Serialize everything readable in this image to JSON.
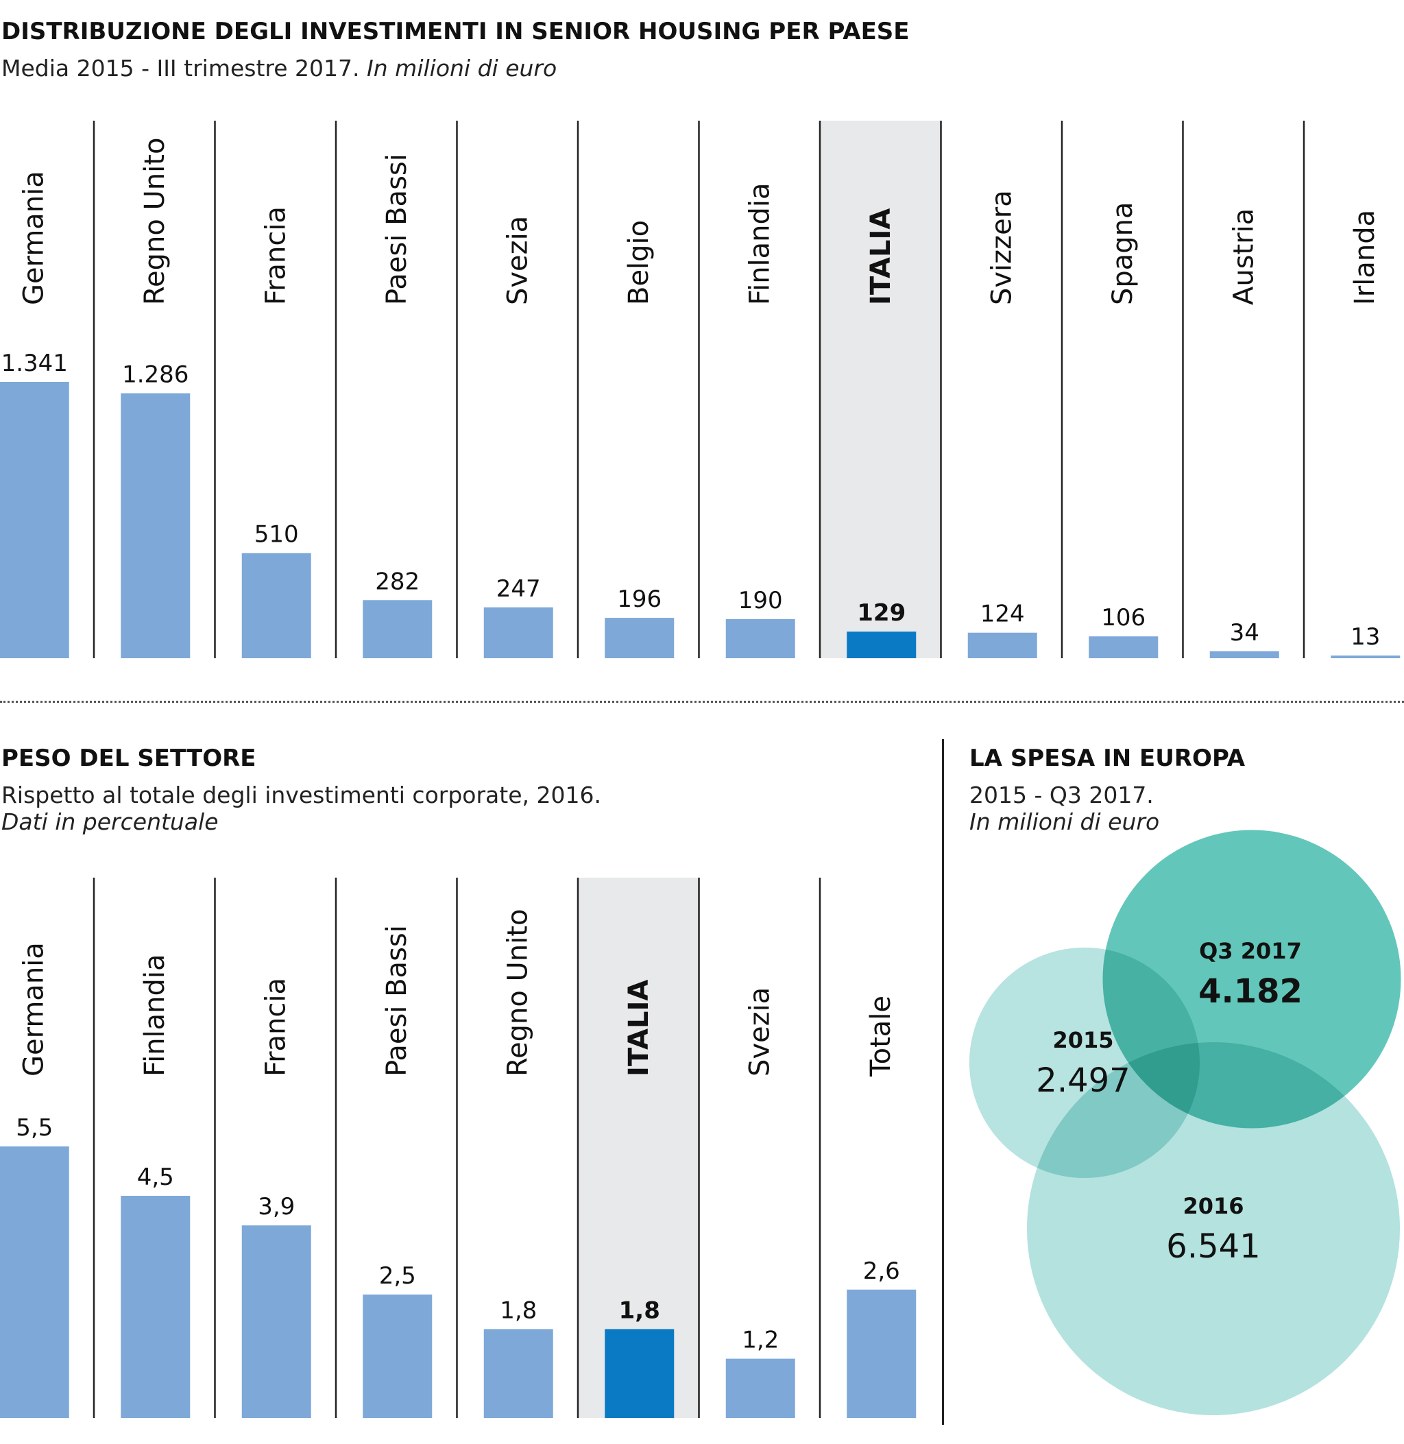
{
  "chart_data": [
    {
      "type": "bar",
      "title": "DISTRIBUZIONE DEGLI INVESTIMENTI IN SENIOR HOUSING PER PAESE",
      "subtitle": "Media 2015 - III trimestre 2017.",
      "subtitle_italic": "In milioni di euro",
      "categories": [
        "Germania",
        "Regno Unito",
        "Francia",
        "Paesi Bassi",
        "Svezia",
        "Belgio",
        "Finlandia",
        "ITALIA",
        "Svizzera",
        "Spagna",
        "Austria",
        "Irlanda"
      ],
      "values": [
        1341,
        1286,
        510,
        282,
        247,
        196,
        190,
        129,
        124,
        106,
        34,
        13
      ],
      "value_labels": [
        "1.341",
        "1.286",
        "510",
        "282",
        "247",
        "196",
        "190",
        "129",
        "124",
        "106",
        "34",
        "13"
      ],
      "highlight": "ITALIA",
      "ylim": [
        0,
        1341
      ]
    },
    {
      "type": "bar",
      "title": "PESO DEL SETTORE",
      "subtitle": "Rispetto al totale degli investimenti corporate, 2016.",
      "subtitle_italic": "Dati in percentuale",
      "categories": [
        "Germania",
        "Finlandia",
        "Francia",
        "Paesi Bassi",
        "Regno Unito",
        "ITALIA",
        "Svezia",
        "Totale"
      ],
      "values": [
        5.5,
        4.5,
        3.9,
        2.5,
        1.8,
        1.8,
        1.2,
        2.6
      ],
      "value_labels": [
        "5,5",
        "4,5",
        "3,9",
        "2,5",
        "1,8",
        "1,8",
        "1,2",
        "2,6"
      ],
      "highlight": "ITALIA",
      "ylim": [
        0,
        5.5
      ]
    },
    {
      "type": "bubble",
      "title": "LA SPESA IN EUROPA",
      "subtitle": "2015 - Q3 2017.",
      "subtitle_italic": "In milioni di euro",
      "series": [
        {
          "name": "2015",
          "value": 2497,
          "value_label": "2.497"
        },
        {
          "name": "Q3 2017",
          "value": 4182,
          "value_label": "4.182"
        },
        {
          "name": "2016",
          "value": 6541,
          "value_label": "6.541"
        }
      ]
    }
  ],
  "colors": {
    "bar": "#7ea8d8",
    "highlight_bar": "#0a7ac4",
    "highlight_bg": "#e8e9ea",
    "circle_light": "#b3e2df",
    "circle_dark": "#4cbfb1",
    "divider": "#222222"
  }
}
